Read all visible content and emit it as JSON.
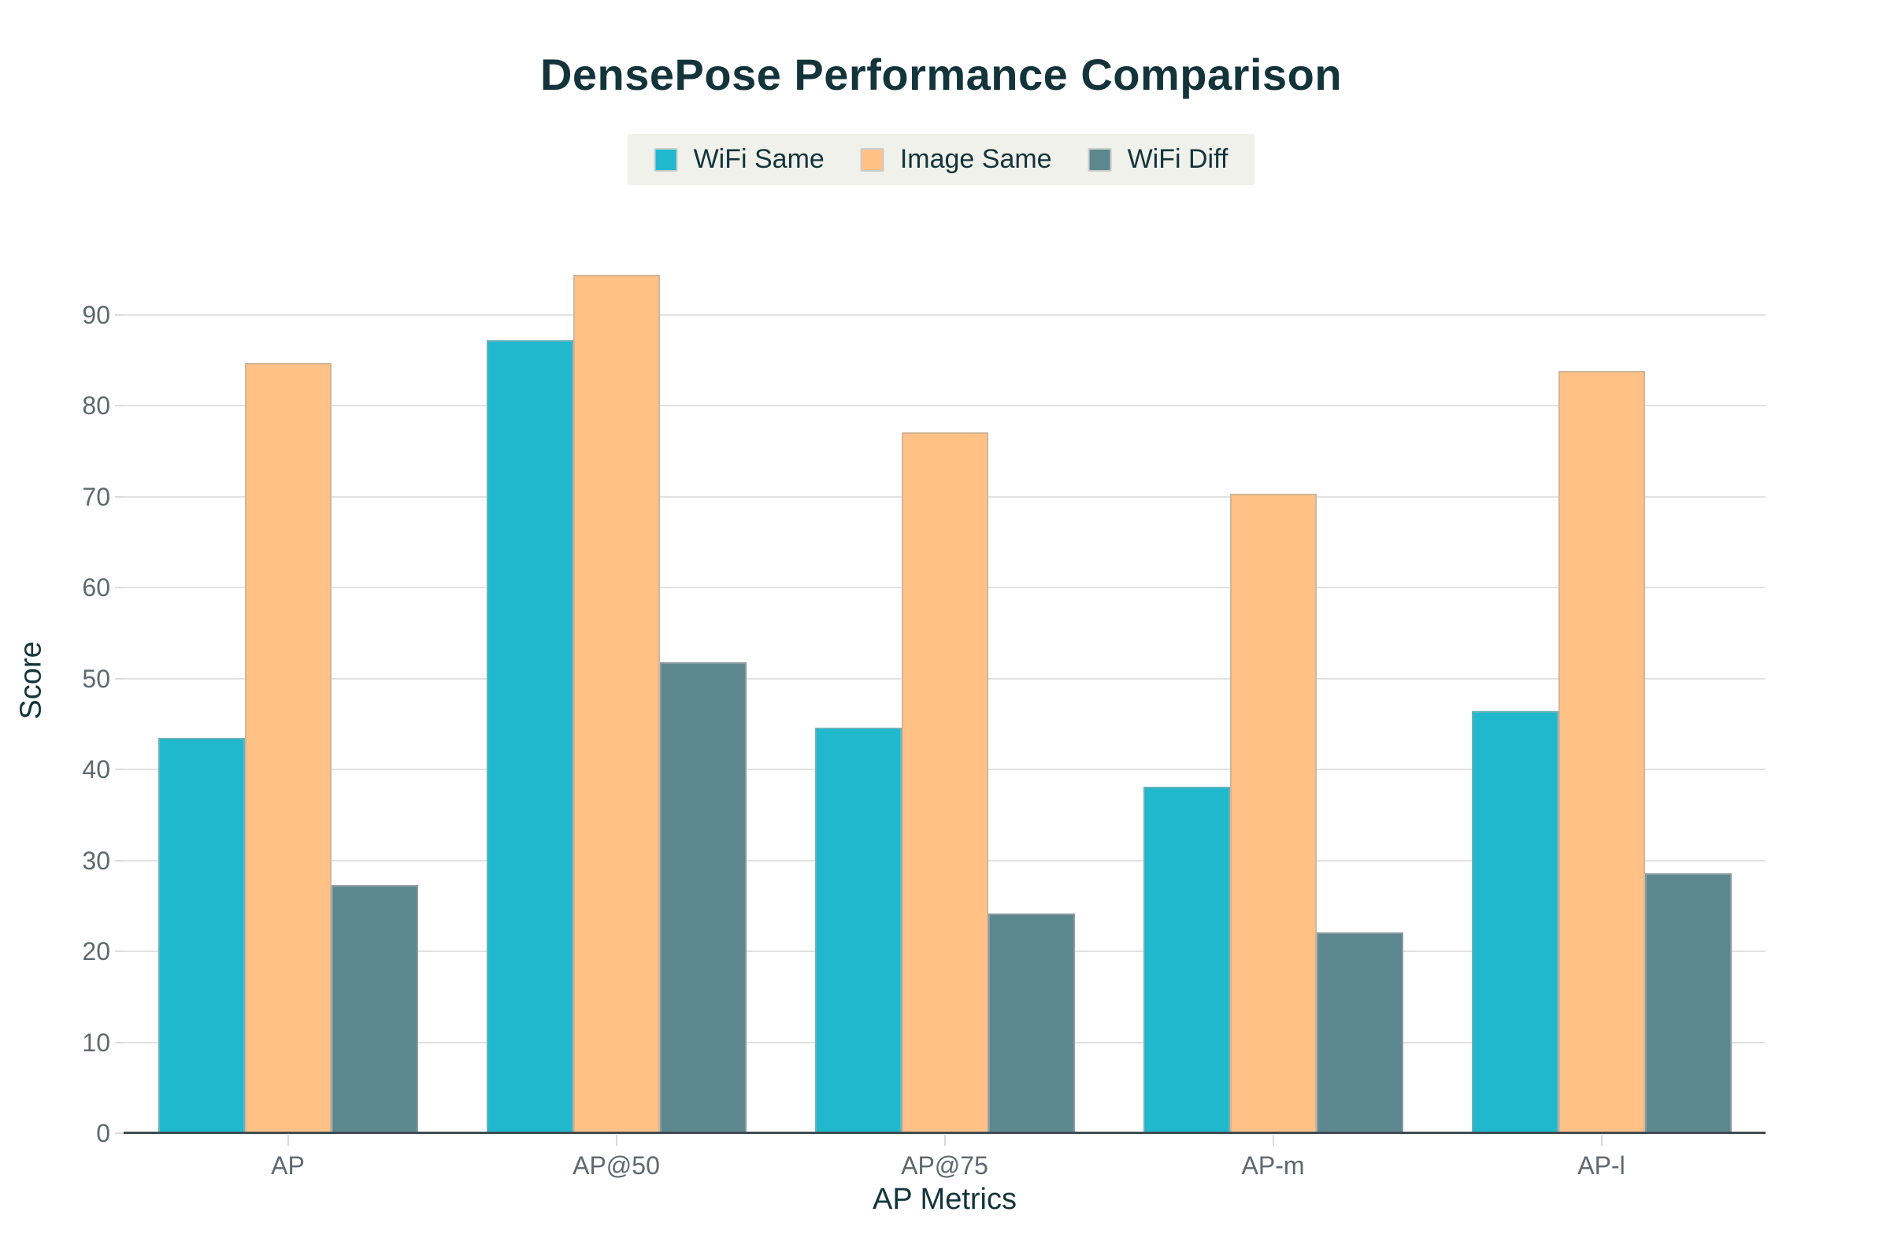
{
  "chart_data": {
    "type": "bar",
    "title": "DensePose Performance Comparison",
    "xlabel": "AP Metrics",
    "ylabel": "Score",
    "categories": [
      "AP",
      "AP@50",
      "AP@75",
      "AP-m",
      "AP-l"
    ],
    "series": [
      {
        "name": "WiFi Same",
        "color": "#1FB8CD",
        "values": [
          43.5,
          87.2,
          44.6,
          38.1,
          46.4
        ]
      },
      {
        "name": "Image Same",
        "color": "#FFC185",
        "values": [
          84.7,
          94.4,
          77.1,
          70.3,
          83.8
        ]
      },
      {
        "name": "WiFi Diff",
        "color": "#5D878F",
        "values": [
          27.3,
          51.8,
          24.2,
          22.1,
          28.6
        ]
      }
    ],
    "yticks": [
      0,
      10,
      20,
      30,
      40,
      50,
      60,
      70,
      80,
      90
    ],
    "ylim": [
      0,
      99.5
    ],
    "grid": true,
    "legend_position": "top-center",
    "legend_background": "#f0f1ea",
    "title_color": "#13343b",
    "tick_label_color": "#5e696e"
  }
}
